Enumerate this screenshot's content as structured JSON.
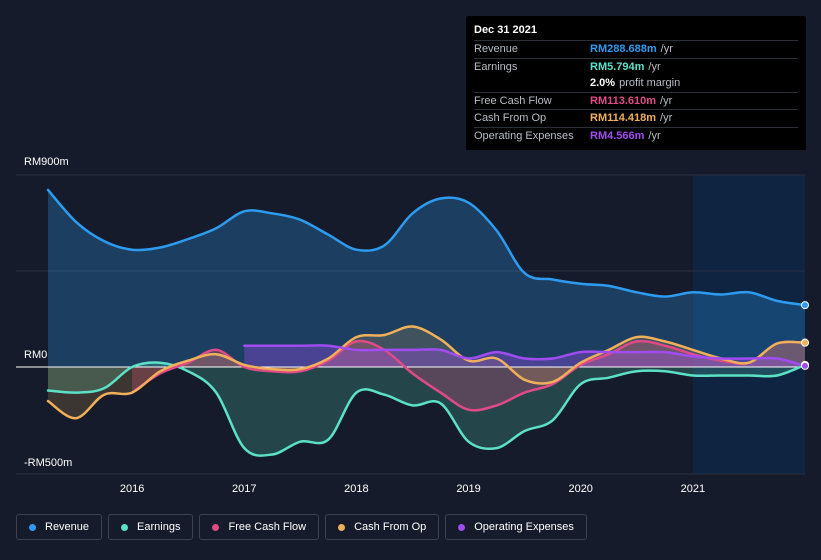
{
  "tooltip": {
    "date": "Dec 31 2021",
    "rows": [
      {
        "key": "Revenue",
        "value": "RM288.688m",
        "unit": "/yr",
        "color": "#2d9cf0"
      },
      {
        "key": "Earnings",
        "value": "RM5.794m",
        "unit": "/yr",
        "color": "#5ce1c6"
      },
      {
        "key": "",
        "value": "2.0%",
        "unit": "profit margin",
        "color": "#ffffff"
      },
      {
        "key": "Free Cash Flow",
        "value": "RM113.610m",
        "unit": "/yr",
        "color": "#e04a86"
      },
      {
        "key": "Cash From Op",
        "value": "RM114.418m",
        "unit": "/yr",
        "color": "#f0b05a"
      },
      {
        "key": "Operating Expenses",
        "value": "RM4.566m",
        "unit": "/yr",
        "color": "#a04cf0"
      }
    ]
  },
  "axis": {
    "top": "RM900m",
    "zero": "RM0",
    "bottom": "-RM500m"
  },
  "legend": [
    {
      "label": "Revenue",
      "color": "#2d9cf0"
    },
    {
      "label": "Earnings",
      "color": "#5ce1c6"
    },
    {
      "label": "Free Cash Flow",
      "color": "#e04a86"
    },
    {
      "label": "Cash From Op",
      "color": "#f0b05a"
    },
    {
      "label": "Operating Expenses",
      "color": "#a04cf0"
    }
  ],
  "chart_data": {
    "type": "line",
    "title": "",
    "xlabel": "",
    "ylabel": "",
    "unit": "RM m",
    "xlim": [
      2015.25,
      2022.0
    ],
    "ylim": [
      -500,
      900
    ],
    "x_ticks": [
      2016,
      2017,
      2018,
      2019,
      2020,
      2021
    ],
    "forecast_start": 2021.0,
    "series": [
      {
        "name": "Revenue",
        "color": "#2d9cf0",
        "points": [
          [
            2015.25,
            830
          ],
          [
            2015.5,
            680
          ],
          [
            2015.75,
            590
          ],
          [
            2016.0,
            550
          ],
          [
            2016.25,
            560
          ],
          [
            2016.5,
            600
          ],
          [
            2016.75,
            650
          ],
          [
            2017.0,
            730
          ],
          [
            2017.25,
            720
          ],
          [
            2017.5,
            690
          ],
          [
            2017.75,
            620
          ],
          [
            2018.0,
            550
          ],
          [
            2018.25,
            570
          ],
          [
            2018.5,
            720
          ],
          [
            2018.75,
            790
          ],
          [
            2019.0,
            770
          ],
          [
            2019.25,
            640
          ],
          [
            2019.5,
            440
          ],
          [
            2019.75,
            410
          ],
          [
            2020.0,
            390
          ],
          [
            2020.25,
            380
          ],
          [
            2020.5,
            350
          ],
          [
            2020.75,
            330
          ],
          [
            2021.0,
            350
          ],
          [
            2021.25,
            340
          ],
          [
            2021.5,
            350
          ],
          [
            2021.75,
            310
          ],
          [
            2022.0,
            290
          ]
        ]
      },
      {
        "name": "Earnings",
        "color": "#5ce1c6",
        "points": [
          [
            2015.25,
            -110
          ],
          [
            2015.5,
            -120
          ],
          [
            2015.75,
            -100
          ],
          [
            2016.0,
            0
          ],
          [
            2016.25,
            20
          ],
          [
            2016.5,
            -20
          ],
          [
            2016.75,
            -120
          ],
          [
            2017.0,
            -380
          ],
          [
            2017.25,
            -410
          ],
          [
            2017.5,
            -350
          ],
          [
            2017.75,
            -340
          ],
          [
            2018.0,
            -120
          ],
          [
            2018.25,
            -130
          ],
          [
            2018.5,
            -180
          ],
          [
            2018.75,
            -170
          ],
          [
            2019.0,
            -350
          ],
          [
            2019.25,
            -380
          ],
          [
            2019.5,
            -300
          ],
          [
            2019.75,
            -250
          ],
          [
            2020.0,
            -80
          ],
          [
            2020.25,
            -50
          ],
          [
            2020.5,
            -20
          ],
          [
            2020.75,
            -20
          ],
          [
            2021.0,
            -40
          ],
          [
            2021.25,
            -40
          ],
          [
            2021.5,
            -40
          ],
          [
            2021.75,
            -40
          ],
          [
            2022.0,
            10
          ]
        ]
      },
      {
        "name": "Free Cash Flow",
        "color": "#e04a86",
        "points": [
          [
            2016.0,
            -120
          ],
          [
            2016.25,
            -30
          ],
          [
            2016.5,
            20
          ],
          [
            2016.75,
            80
          ],
          [
            2017.0,
            0
          ],
          [
            2017.25,
            -20
          ],
          [
            2017.5,
            -20
          ],
          [
            2017.75,
            30
          ],
          [
            2018.0,
            120
          ],
          [
            2018.25,
            80
          ],
          [
            2018.5,
            -30
          ],
          [
            2018.75,
            -120
          ],
          [
            2019.0,
            -200
          ],
          [
            2019.25,
            -180
          ],
          [
            2019.5,
            -120
          ],
          [
            2019.75,
            -80
          ],
          [
            2020.0,
            10
          ],
          [
            2020.25,
            60
          ],
          [
            2020.5,
            120
          ],
          [
            2020.75,
            100
          ],
          [
            2021.0,
            60
          ],
          [
            2021.25,
            30
          ],
          [
            2021.5,
            20
          ],
          [
            2021.75,
            110
          ],
          [
            2022.0,
            114
          ]
        ]
      },
      {
        "name": "Cash From Op",
        "color": "#f0b05a",
        "points": [
          [
            2015.25,
            -160
          ],
          [
            2015.5,
            -240
          ],
          [
            2015.75,
            -130
          ],
          [
            2016.0,
            -120
          ],
          [
            2016.25,
            -20
          ],
          [
            2016.5,
            30
          ],
          [
            2016.75,
            60
          ],
          [
            2017.0,
            10
          ],
          [
            2017.25,
            -10
          ],
          [
            2017.5,
            -10
          ],
          [
            2017.75,
            40
          ],
          [
            2018.0,
            140
          ],
          [
            2018.25,
            150
          ],
          [
            2018.5,
            190
          ],
          [
            2018.75,
            130
          ],
          [
            2019.0,
            30
          ],
          [
            2019.25,
            40
          ],
          [
            2019.5,
            -60
          ],
          [
            2019.75,
            -70
          ],
          [
            2020.0,
            20
          ],
          [
            2020.25,
            80
          ],
          [
            2020.5,
            140
          ],
          [
            2020.75,
            120
          ],
          [
            2021.0,
            80
          ],
          [
            2021.25,
            40
          ],
          [
            2021.5,
            20
          ],
          [
            2021.75,
            110
          ],
          [
            2022.0,
            114
          ]
        ]
      },
      {
        "name": "Operating Expenses",
        "color": "#a04cf0",
        "points": [
          [
            2017.0,
            100
          ],
          [
            2017.5,
            100
          ],
          [
            2017.75,
            100
          ],
          [
            2018.0,
            80
          ],
          [
            2018.25,
            80
          ],
          [
            2018.5,
            80
          ],
          [
            2018.75,
            80
          ],
          [
            2019.0,
            40
          ],
          [
            2019.25,
            70
          ],
          [
            2019.5,
            40
          ],
          [
            2019.75,
            40
          ],
          [
            2020.0,
            70
          ],
          [
            2020.25,
            70
          ],
          [
            2020.5,
            70
          ],
          [
            2020.75,
            70
          ],
          [
            2021.0,
            50
          ],
          [
            2021.25,
            40
          ],
          [
            2021.5,
            40
          ],
          [
            2021.75,
            40
          ],
          [
            2022.0,
            5
          ]
        ]
      }
    ]
  }
}
